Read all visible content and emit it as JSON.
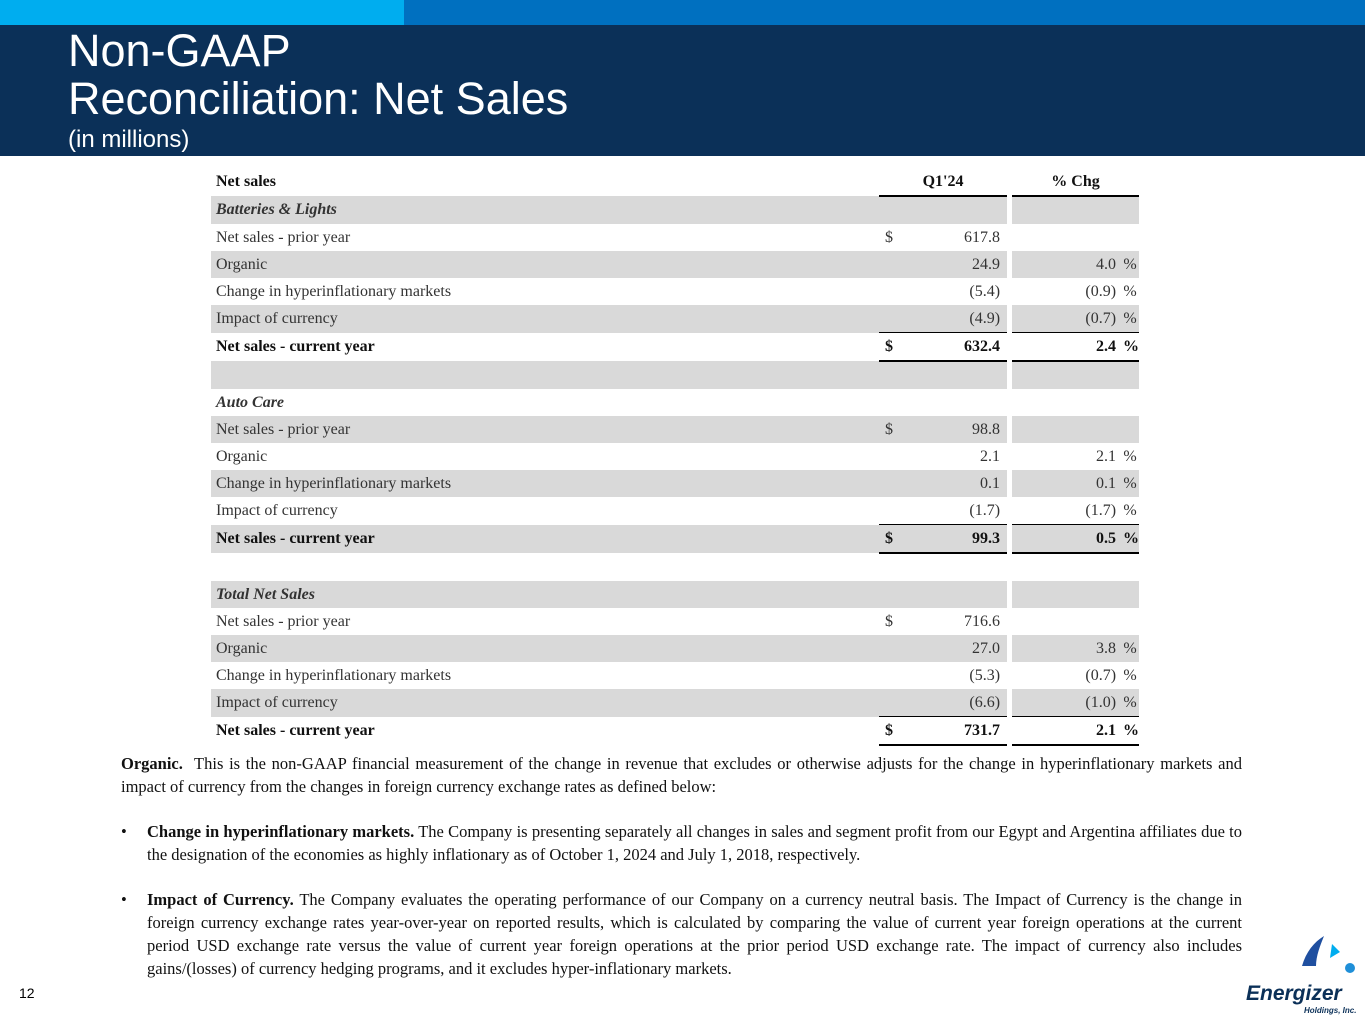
{
  "header": {
    "title_line1": "Non-GAAP",
    "title_line2": "Reconciliation:  Net Sales",
    "subtitle": "(in millions)"
  },
  "table": {
    "header_label": "Net sales",
    "col_period": "Q1'24",
    "col_change": "% Chg",
    "segments": [
      {
        "name": "Batteries & Lights",
        "rows": [
          {
            "label": "Net sales - prior year",
            "currency": "$",
            "amount": "617.8",
            "pct": ""
          },
          {
            "label": "Organic",
            "currency": "",
            "amount": "24.9",
            "pct": "4.0"
          },
          {
            "label": "Change in hyperinflationary markets",
            "currency": "",
            "amount": "(5.4)",
            "pct": "(0.9)"
          },
          {
            "label": "Impact of currency",
            "currency": "",
            "amount": "(4.9)",
            "pct": "(0.7)"
          },
          {
            "label": "Net sales - current year",
            "currency": "$",
            "amount": "632.4",
            "pct": "2.4"
          }
        ]
      },
      {
        "name": "Auto Care",
        "rows": [
          {
            "label": "Net sales - prior year",
            "currency": "$",
            "amount": "98.8",
            "pct": ""
          },
          {
            "label": "Organic",
            "currency": "",
            "amount": "2.1",
            "pct": "2.1"
          },
          {
            "label": "Change in hyperinflationary markets",
            "currency": "",
            "amount": "0.1",
            "pct": "0.1"
          },
          {
            "label": "Impact of currency",
            "currency": "",
            "amount": "(1.7)",
            "pct": "(1.7)"
          },
          {
            "label": "Net sales - current year",
            "currency": "$",
            "amount": "99.3",
            "pct": "0.5"
          }
        ]
      },
      {
        "name": "Total Net Sales",
        "rows": [
          {
            "label": "Net sales - prior year",
            "currency": "$",
            "amount": "716.6",
            "pct": ""
          },
          {
            "label": "Organic",
            "currency": "",
            "amount": "27.0",
            "pct": "3.8"
          },
          {
            "label": "Change in hyperinflationary markets",
            "currency": "",
            "amount": "(5.3)",
            "pct": "(0.7)"
          },
          {
            "label": "Impact of currency",
            "currency": "",
            "amount": "(6.6)",
            "pct": "(1.0)"
          },
          {
            "label": "Net sales - current year",
            "currency": "$",
            "amount": "731.7",
            "pct": "2.1"
          }
        ]
      }
    ]
  },
  "notes": {
    "organic_term": "Organic.",
    "organic_text": "This is the non-GAAP financial measurement of the change in revenue that excludes or otherwise adjusts for the change in hyperinflationary markets and impact of currency from the changes in foreign currency exchange rates as defined below:",
    "bullets": [
      {
        "term": "Change in hyperinflationary markets.",
        "text": "The Company is presenting separately all changes in sales and segment profit from our Egypt and Argentina affiliates due to the designation of the economies as highly inflationary as of October 1, 2024 and July 1, 2018, respectively."
      },
      {
        "term": "Impact of Currency.",
        "text": "The Company evaluates the operating performance of our Company on a currency neutral basis. The Impact of Currency is the change in foreign currency exchange rates year-over-year on reported results, which is calculated by comparing the value of current year foreign operations at the current period USD exchange rate versus the value of current year foreign operations at the prior period USD exchange rate. The impact of currency also includes gains/(losses) of currency hedging programs, and it excludes hyper-inflationary markets."
      }
    ],
    "bullet_symbol": "•"
  },
  "footer": {
    "page_number": "12",
    "logo_name": "Energizer",
    "logo_sub": "Holdings, Inc."
  },
  "colors": {
    "header_bg": "#0b3058",
    "topbar_light": "#00adef",
    "topbar_dark": "#0070c0",
    "row_shade": "#d9d9d9"
  }
}
